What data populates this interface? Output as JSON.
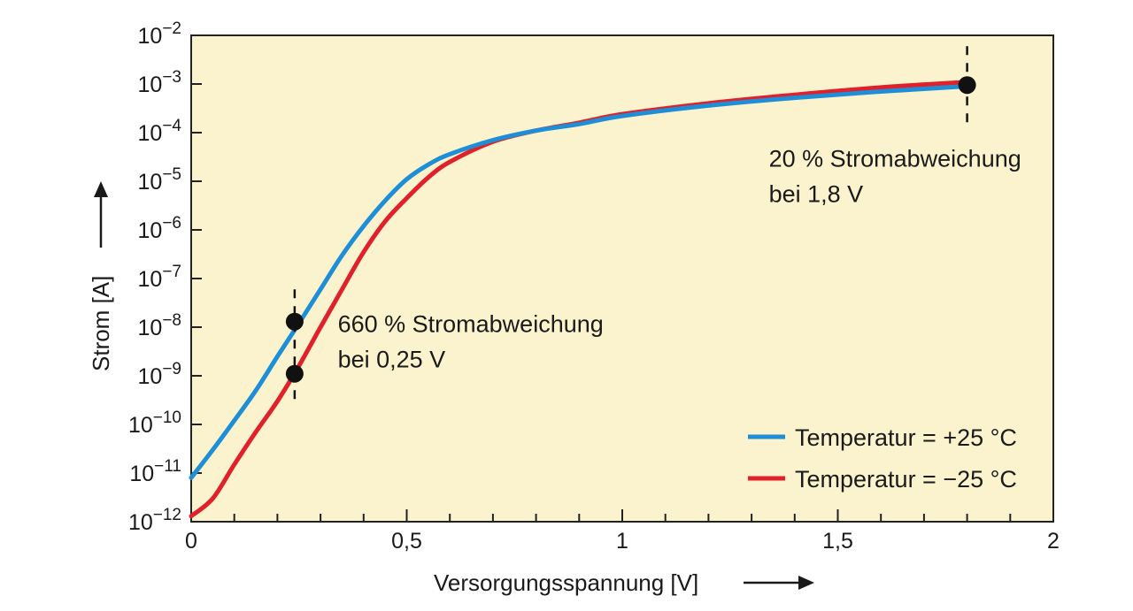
{
  "chart_data": {
    "type": "line",
    "xlabel": "Versorgungsspannung [V]",
    "ylabel": "Strom [A]",
    "xlim": [
      0,
      2
    ],
    "ylim": [
      1e-12,
      0.01
    ],
    "yscale": "log",
    "grid": false,
    "legend_position": "bottom-right",
    "x_ticks": [
      {
        "value": 0,
        "label": "0"
      },
      {
        "value": 0.5,
        "label": "0,5"
      },
      {
        "value": 1,
        "label": "1"
      },
      {
        "value": 1.5,
        "label": "1,5"
      },
      {
        "value": 2,
        "label": "2"
      }
    ],
    "y_ticks": [
      {
        "exp": -12,
        "base": "10",
        "sup": "−12"
      },
      {
        "exp": -11,
        "base": "10",
        "sup": "−11"
      },
      {
        "exp": -10,
        "base": "10",
        "sup": "−10"
      },
      {
        "exp": -9,
        "base": "10",
        "sup": "−9"
      },
      {
        "exp": -8,
        "base": "10",
        "sup": "−8"
      },
      {
        "exp": -7,
        "base": "10",
        "sup": "−7"
      },
      {
        "exp": -6,
        "base": "10",
        "sup": "−6"
      },
      {
        "exp": -5,
        "base": "10",
        "sup": "−5"
      },
      {
        "exp": -4,
        "base": "10",
        "sup": "−4"
      },
      {
        "exp": -3,
        "base": "10",
        "sup": "−3"
      },
      {
        "exp": -2,
        "base": "10",
        "sup": "−2"
      }
    ],
    "series": [
      {
        "name": "Temperatur = +25 °C",
        "color": "#1e8fd6",
        "x": [
          0,
          0.05,
          0.1,
          0.15,
          0.2,
          0.25,
          0.3,
          0.35,
          0.4,
          0.45,
          0.5,
          0.55,
          0.6,
          0.7,
          0.8,
          0.9,
          1.0,
          1.2,
          1.4,
          1.6,
          1.8
        ],
        "y": [
          8e-12,
          3e-11,
          1.2e-10,
          5e-10,
          2.5e-09,
          1.2e-08,
          6e-08,
          3e-07,
          1.2e-06,
          4e-06,
          1.1e-05,
          2.2e-05,
          3.6e-05,
          7e-05,
          0.00011,
          0.00015,
          0.00022,
          0.00036,
          0.00052,
          0.0007,
          0.0009
        ]
      },
      {
        "name": "Temperatur = −25 °C",
        "color": "#e0202a",
        "x": [
          0,
          0.05,
          0.1,
          0.15,
          0.2,
          0.25,
          0.3,
          0.35,
          0.4,
          0.45,
          0.5,
          0.55,
          0.6,
          0.7,
          0.8,
          0.9,
          1.0,
          1.2,
          1.4,
          1.6,
          1.8
        ],
        "y": [
          1.3e-12,
          3e-12,
          1.5e-11,
          7e-11,
          3e-10,
          1.6e-09,
          1e-08,
          6e-08,
          3.5e-07,
          1.5e-06,
          4.5e-06,
          1.2e-05,
          2.5e-05,
          6.5e-05,
          0.00011,
          0.00016,
          0.00024,
          0.0004,
          0.0006,
          0.00085,
          0.0011
        ]
      }
    ],
    "markers": [
      {
        "x": 0.24,
        "y": 1.3e-08
      },
      {
        "x": 0.24,
        "y": 1.1e-09
      },
      {
        "x": 1.8,
        "y": 0.00095
      }
    ],
    "marker_lines": [
      {
        "x": 0.24,
        "y_from": 6e-08,
        "y_to": 3e-10
      },
      {
        "x": 1.8,
        "y_from": 0.006,
        "y_to": 0.00012
      }
    ],
    "annotations": [
      {
        "lines": [
          "660 % Stromabweichung",
          "bei 0,25 V"
        ],
        "x": 0.34,
        "y": 8e-09
      },
      {
        "lines": [
          "20 % Stromabweichung",
          "bei 1,8 V"
        ],
        "x": 1.34,
        "y": 2e-05
      }
    ]
  }
}
